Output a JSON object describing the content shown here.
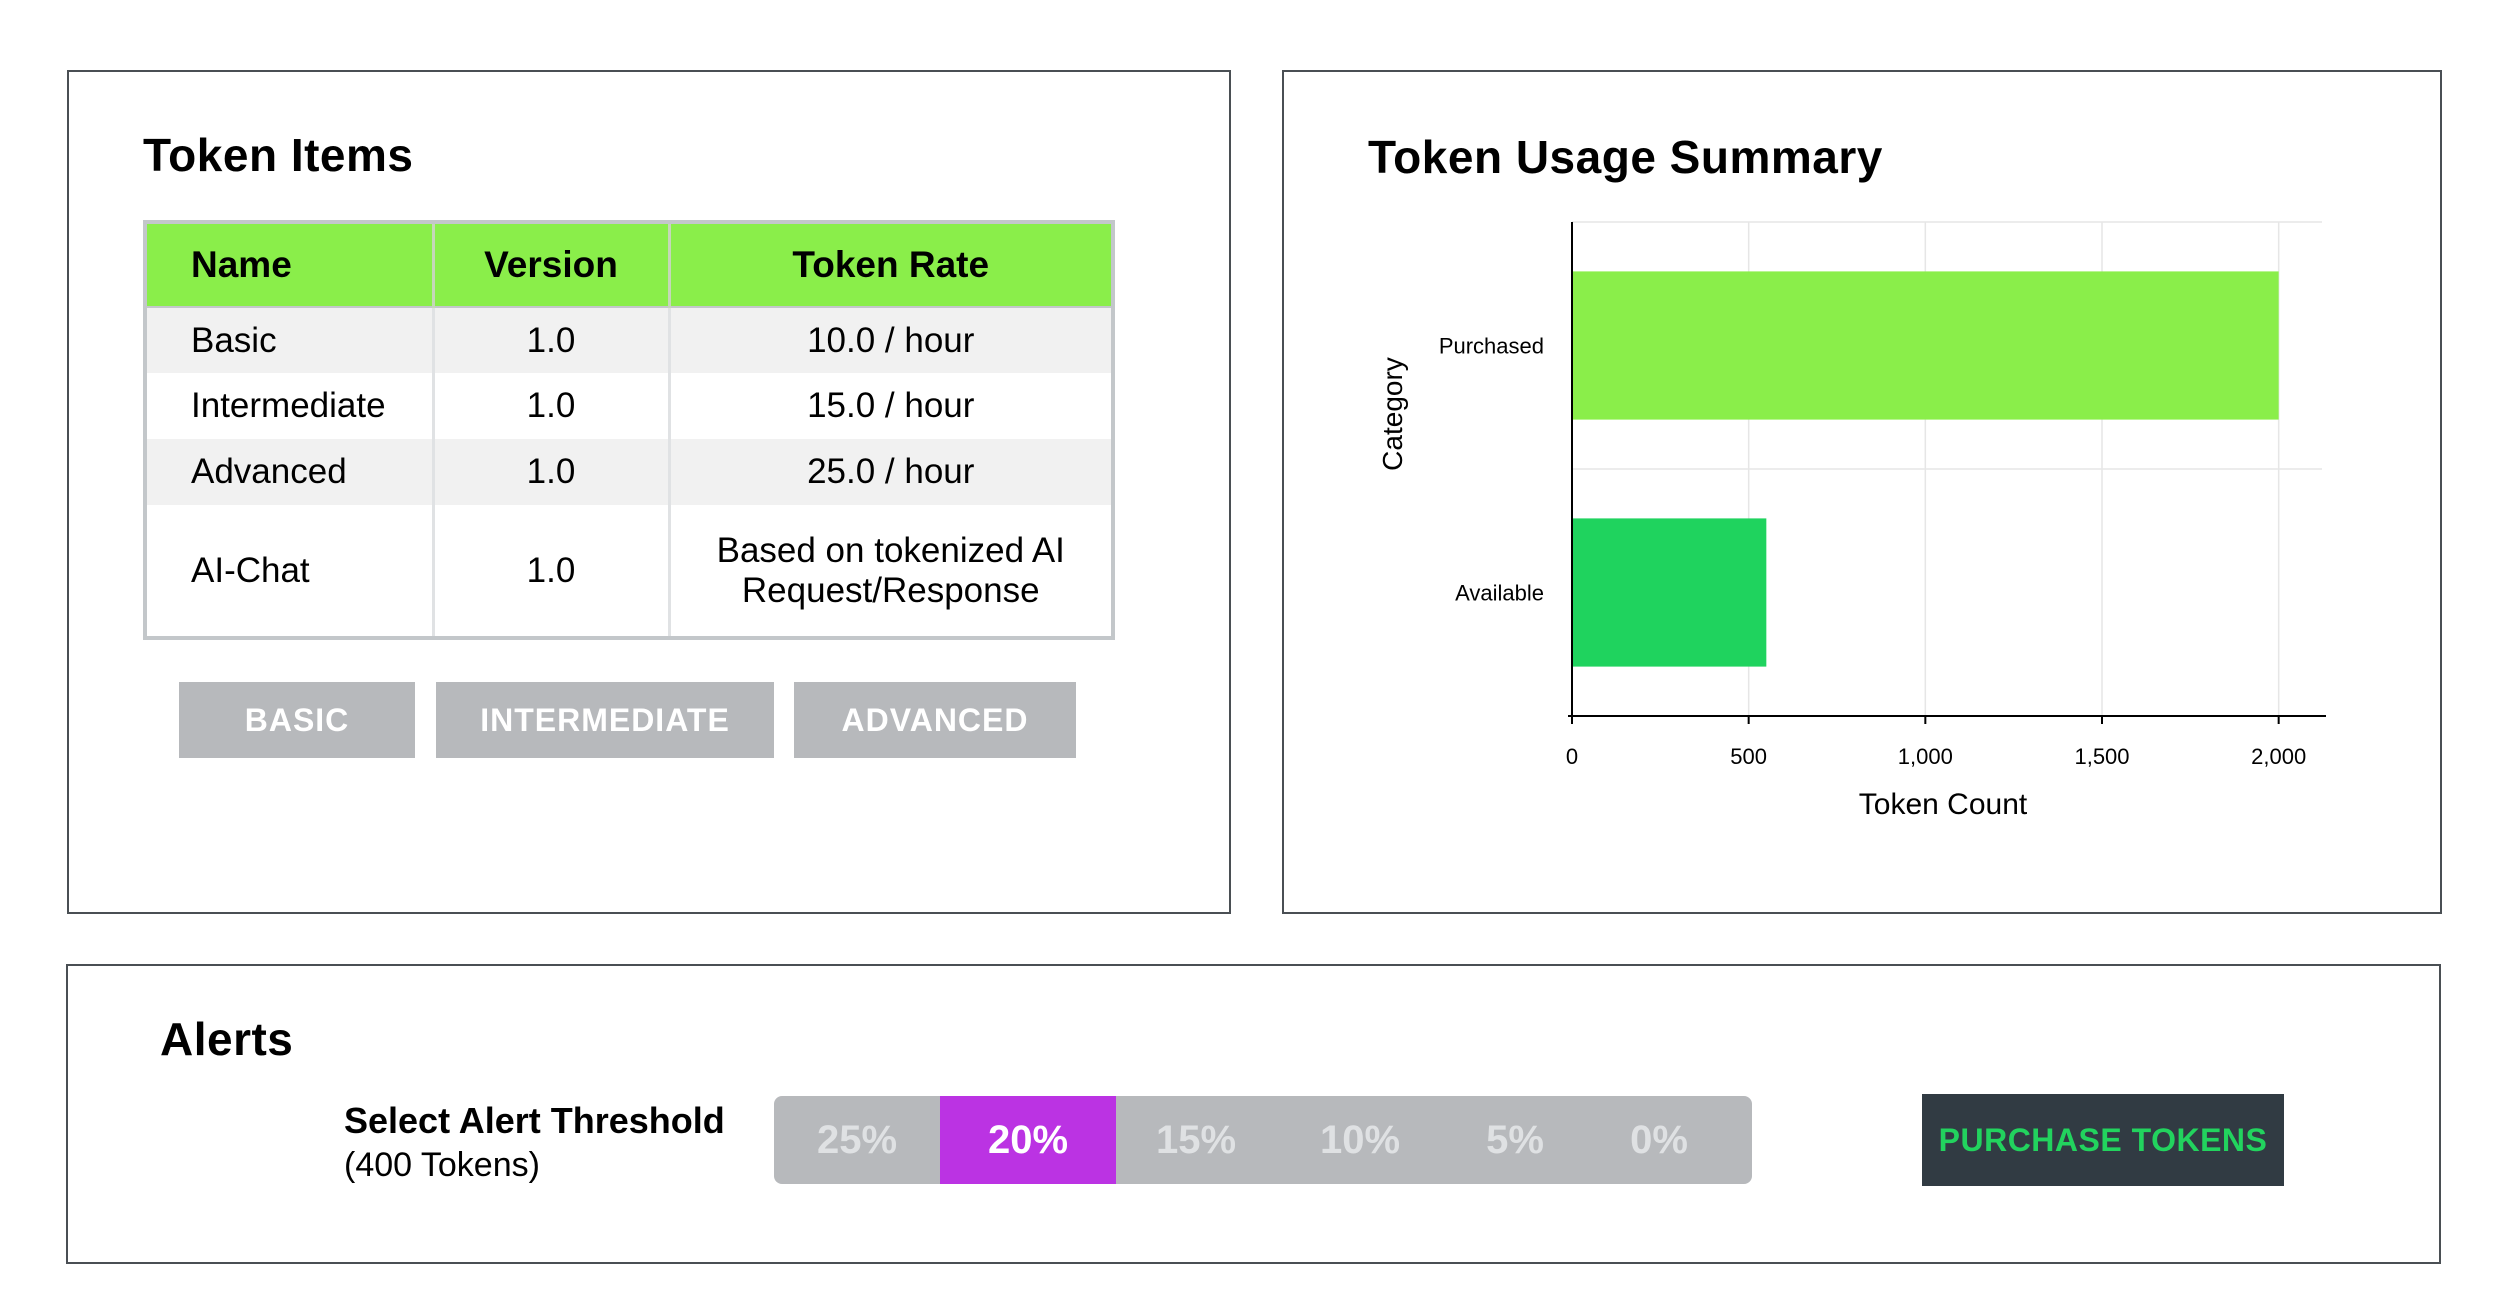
{
  "token_items": {
    "title": "Token Items",
    "columns": [
      "Name",
      "Version",
      "Token Rate"
    ],
    "rows": [
      {
        "name": "Basic",
        "version": "1.0",
        "rate": "10.0 / hour"
      },
      {
        "name": "Intermediate",
        "version": "1.0",
        "rate": "15.0 / hour"
      },
      {
        "name": "Advanced",
        "version": "1.0",
        "rate": "25.0 / hour"
      },
      {
        "name": "AI-Chat",
        "version": "1.0",
        "rate": "Based on tokenized AI Request/Response"
      }
    ],
    "buttons": {
      "basic": "BASIC",
      "intermediate": "INTERMEDIATE",
      "advanced": "ADVANCED"
    }
  },
  "usage": {
    "title": "Token Usage Summary"
  },
  "chart_data": {
    "type": "bar",
    "orientation": "horizontal",
    "categories": [
      "Purchased",
      "Available"
    ],
    "values": [
      2000,
      550
    ],
    "colors": [
      "#8aee4a",
      "#1fd35e"
    ],
    "xlabel": "Token Count",
    "ylabel": "Category",
    "xlim": [
      0,
      2100
    ],
    "xticks": [
      0,
      500,
      1000,
      1500,
      2000
    ],
    "xtick_labels": [
      "0",
      "500",
      "1,000",
      "1,500",
      "2,000"
    ],
    "grid": true
  },
  "alerts": {
    "title": "Alerts",
    "label": "Select Alert Threshold",
    "sublabel": "(400 Tokens)",
    "options": [
      "25%",
      "20%",
      "15%",
      "10%",
      "5%",
      "0%"
    ],
    "selected": "20%",
    "purchase_label": "PURCHASE TOKENS"
  },
  "colors": {
    "header_green": "#8aee4a",
    "accent_green": "#1fd35e",
    "selected_purple": "#bb33e3",
    "button_gray": "#b7b9bc",
    "dark_button": "#313b43"
  }
}
